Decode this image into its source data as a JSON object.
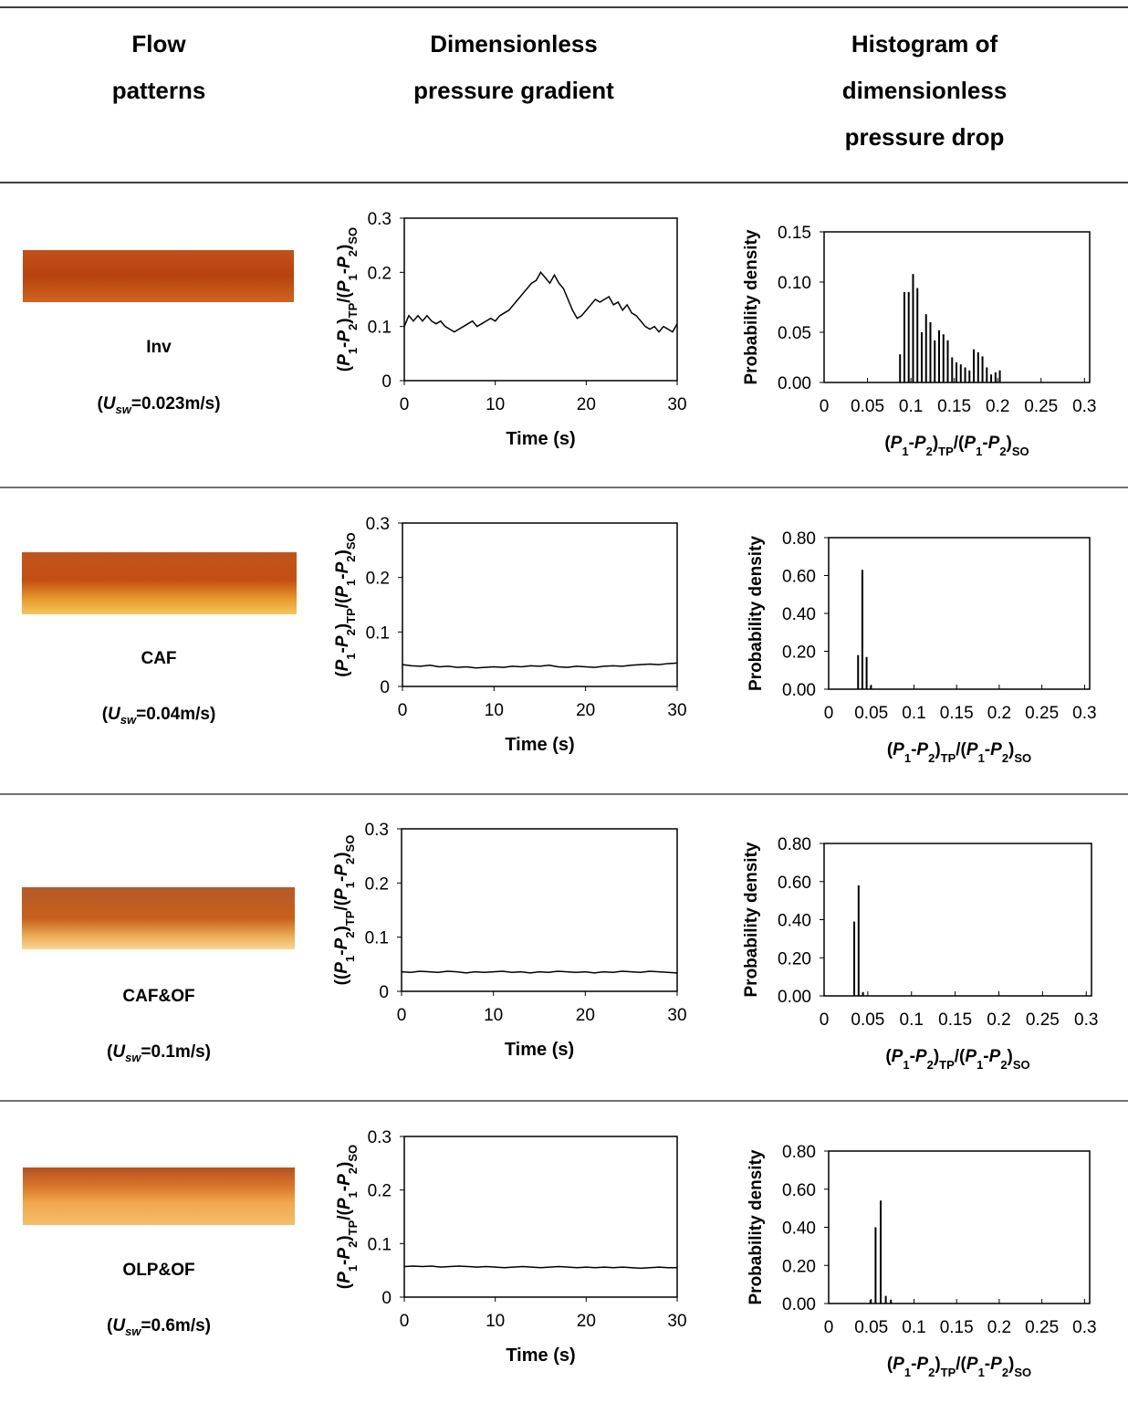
{
  "table": {
    "headers": [
      "Flow patterns",
      "Dimensionless pressure gradient",
      "Histogram of dimensionless pressure drop"
    ],
    "rows": [
      {
        "pattern": "Inv",
        "velocity": [
          "(",
          "U",
          "sw",
          "=0.023m/s)"
        ]
      },
      {
        "pattern": "CAF",
        "velocity": [
          "(",
          "U",
          "sw",
          "=0.04m/s)"
        ]
      },
      {
        "pattern": "CAF&OF",
        "velocity": [
          "(",
          "U",
          "sw",
          "=0.1m/s)"
        ]
      },
      {
        "pattern": "OLP&OF",
        "velocity": [
          "(",
          "U",
          "sw",
          "=0.6m/s)"
        ]
      }
    ]
  },
  "chart_data": [
    {
      "type": "line",
      "x_label": "Time (s)",
      "y_label": [
        "(",
        "P",
        "1",
        "-",
        "P",
        "2",
        ")",
        "TP",
        "/(",
        "P",
        "1",
        "-",
        "P",
        "2",
        ")",
        "SO"
      ],
      "color": "#000000",
      "xlim": [
        0,
        30
      ],
      "ylim": [
        0,
        0.3
      ],
      "xticks": [
        0,
        10,
        20,
        30
      ],
      "yticks": [
        0,
        0.1,
        0.2,
        0.3
      ],
      "x": [
        0,
        0.5,
        1,
        1.5,
        2,
        2.5,
        3,
        3.5,
        4,
        4.5,
        5,
        5.5,
        6,
        6.5,
        7,
        7.5,
        8,
        8.5,
        9,
        9.5,
        10,
        10.5,
        11,
        11.5,
        12,
        12.5,
        13,
        13.5,
        14,
        14.5,
        15,
        15.5,
        16,
        16.5,
        17,
        17.5,
        18,
        18.5,
        19,
        19.5,
        20,
        20.5,
        21,
        21.5,
        22,
        22.5,
        23,
        23.5,
        24,
        24.5,
        25,
        25.5,
        26,
        26.5,
        27,
        27.5,
        28,
        28.5,
        29,
        29.5,
        30
      ],
      "values": [
        0.1,
        0.12,
        0.11,
        0.12,
        0.11,
        0.12,
        0.11,
        0.105,
        0.11,
        0.1,
        0.095,
        0.09,
        0.095,
        0.1,
        0.105,
        0.11,
        0.1,
        0.105,
        0.11,
        0.115,
        0.11,
        0.12,
        0.125,
        0.13,
        0.14,
        0.15,
        0.16,
        0.17,
        0.18,
        0.185,
        0.2,
        0.19,
        0.18,
        0.195,
        0.18,
        0.17,
        0.15,
        0.13,
        0.115,
        0.12,
        0.13,
        0.14,
        0.15,
        0.145,
        0.15,
        0.155,
        0.14,
        0.145,
        0.13,
        0.14,
        0.125,
        0.12,
        0.11,
        0.1,
        0.095,
        0.1,
        0.09,
        0.1,
        0.095,
        0.09,
        0.105
      ]
    },
    {
      "type": "histogram",
      "x_label": [
        "(",
        "P",
        "1",
        "-",
        "P",
        "2",
        ")",
        "TP",
        "/(",
        "P",
        "1",
        "-",
        "P",
        "2",
        ")",
        "SO"
      ],
      "y_label": "Probability density",
      "color": "#000000",
      "xlim": [
        0,
        0.306
      ],
      "ylim": [
        0,
        0.15
      ],
      "xticks": [
        0,
        0.05,
        0.1,
        0.15,
        0.2,
        0.25,
        0.3
      ],
      "yticks": [
        {
          "value": 0,
          "label": "0.00"
        },
        {
          "value": 0.05,
          "label": "0.05"
        },
        {
          "value": 0.1,
          "label": "0.10"
        },
        {
          "value": 0.15,
          "label": "0.15"
        }
      ],
      "bins": [
        0.085,
        0.09,
        0.095,
        0.1,
        0.105,
        0.11,
        0.115,
        0.12,
        0.125,
        0.13,
        0.135,
        0.14,
        0.145,
        0.15,
        0.155,
        0.16,
        0.165,
        0.17,
        0.175,
        0.18,
        0.185,
        0.19,
        0.195,
        0.2,
        0.205
      ],
      "values": [
        0.028,
        0.09,
        0.09,
        0.108,
        0.094,
        0.05,
        0.068,
        0.06,
        0.042,
        0.052,
        0.048,
        0.042,
        0.025,
        0.02,
        0.018,
        0.015,
        0.012,
        0.033,
        0.03,
        0.026,
        0.015,
        0.008,
        0.01,
        0.012
      ]
    },
    {
      "type": "line",
      "x_label": "Time (s)",
      "y_label": [
        "(",
        "P",
        "1",
        "-",
        "P",
        "2",
        ")",
        "TP",
        "/(",
        "P",
        "1",
        "-",
        "P",
        "2",
        ")",
        "SO"
      ],
      "color": "#000000",
      "xlim": [
        0,
        30
      ],
      "ylim": [
        0,
        0.3
      ],
      "xticks": [
        0,
        10,
        20,
        30
      ],
      "yticks": [
        0,
        0.1,
        0.2,
        0.3
      ],
      "x": [
        0,
        1,
        2,
        3,
        4,
        5,
        6,
        7,
        8,
        9,
        10,
        11,
        12,
        13,
        14,
        15,
        16,
        17,
        18,
        19,
        20,
        21,
        22,
        23,
        24,
        25,
        26,
        27,
        28,
        29,
        30
      ],
      "values": [
        0.04,
        0.038,
        0.037,
        0.039,
        0.036,
        0.037,
        0.035,
        0.036,
        0.034,
        0.035,
        0.036,
        0.035,
        0.037,
        0.036,
        0.038,
        0.037,
        0.039,
        0.036,
        0.035,
        0.037,
        0.036,
        0.035,
        0.037,
        0.038,
        0.037,
        0.039,
        0.04,
        0.041,
        0.04,
        0.042,
        0.043
      ]
    },
    {
      "type": "histogram",
      "x_label": [
        "(",
        "P",
        "1",
        "-",
        "P",
        "2",
        ")",
        "TP",
        "/(",
        "P",
        "1",
        "-",
        "P",
        "2",
        ")",
        "SO"
      ],
      "y_label": "Probability density",
      "color": "#000000",
      "xlim": [
        0,
        0.306
      ],
      "ylim": [
        0,
        0.8
      ],
      "xticks": [
        0,
        0.05,
        0.1,
        0.15,
        0.2,
        0.25,
        0.3
      ],
      "yticks": [
        {
          "value": 0,
          "label": "0.00"
        },
        {
          "value": 0.2,
          "label": "0.20"
        },
        {
          "value": 0.4,
          "label": "0.40"
        },
        {
          "value": 0.6,
          "label": "0.60"
        },
        {
          "value": 0.8,
          "label": "0.80"
        }
      ],
      "bins": [
        0.032,
        0.037,
        0.042,
        0.047,
        0.052
      ],
      "values": [
        0.18,
        0.63,
        0.17,
        0.02
      ]
    },
    {
      "type": "line",
      "x_label": "Time (s)",
      "y_label": [
        "((",
        "P",
        "1",
        "-",
        "P",
        "2",
        ")",
        "TP",
        "/(",
        "P",
        "1",
        "-",
        "P",
        "2",
        ")",
        "SO"
      ],
      "color": "#000000",
      "xlim": [
        0,
        30
      ],
      "ylim": [
        0,
        0.3
      ],
      "xticks": [
        0,
        10,
        20,
        30
      ],
      "yticks": [
        0,
        0.1,
        0.2,
        0.3
      ],
      "x": [
        0,
        1,
        2,
        3,
        4,
        5,
        6,
        7,
        8,
        9,
        10,
        11,
        12,
        13,
        14,
        15,
        16,
        17,
        18,
        19,
        20,
        21,
        22,
        23,
        24,
        25,
        26,
        27,
        28,
        29,
        30
      ],
      "values": [
        0.036,
        0.035,
        0.037,
        0.036,
        0.035,
        0.037,
        0.036,
        0.034,
        0.036,
        0.035,
        0.036,
        0.037,
        0.035,
        0.036,
        0.034,
        0.036,
        0.035,
        0.037,
        0.036,
        0.035,
        0.036,
        0.034,
        0.036,
        0.035,
        0.037,
        0.036,
        0.035,
        0.037,
        0.036,
        0.035,
        0.034
      ]
    },
    {
      "type": "histogram",
      "x_label": [
        "(",
        "P",
        "1",
        "-",
        "P",
        "2",
        ")",
        "TP",
        "/(",
        "P",
        "1",
        "-",
        "P",
        "2",
        ")",
        "SO"
      ],
      "y_label": "Probability density",
      "color": "#000000",
      "xlim": [
        0,
        0.306
      ],
      "ylim": [
        0,
        0.8
      ],
      "xticks": [
        0,
        0.05,
        0.1,
        0.15,
        0.2,
        0.25,
        0.3
      ],
      "yticks": [
        {
          "value": 0,
          "label": "0.00"
        },
        {
          "value": 0.2,
          "label": "0.20"
        },
        {
          "value": 0.4,
          "label": "0.40"
        },
        {
          "value": 0.6,
          "label": "0.60"
        },
        {
          "value": 0.8,
          "label": "0.80"
        }
      ],
      "bins": [
        0.032,
        0.037,
        0.042,
        0.047
      ],
      "values": [
        0.39,
        0.58,
        0.02
      ]
    },
    {
      "type": "line",
      "x_label": "Time (s)",
      "y_label": [
        "(",
        "P",
        "1",
        "-",
        "P",
        "2",
        ")",
        "TP",
        "/(",
        "P",
        "1",
        "-",
        "P",
        "2",
        ")",
        "SO"
      ],
      "color": "#000000",
      "xlim": [
        0,
        30
      ],
      "ylim": [
        0,
        0.3
      ],
      "xticks": [
        0,
        10,
        20,
        30
      ],
      "yticks": [
        0,
        0.1,
        0.2,
        0.3
      ],
      "x": [
        0,
        1,
        2,
        3,
        4,
        5,
        6,
        7,
        8,
        9,
        10,
        11,
        12,
        13,
        14,
        15,
        16,
        17,
        18,
        19,
        20,
        21,
        22,
        23,
        24,
        25,
        26,
        27,
        28,
        29,
        30
      ],
      "values": [
        0.057,
        0.058,
        0.057,
        0.058,
        0.056,
        0.057,
        0.058,
        0.057,
        0.056,
        0.057,
        0.056,
        0.055,
        0.056,
        0.057,
        0.056,
        0.055,
        0.056,
        0.057,
        0.056,
        0.055,
        0.056,
        0.055,
        0.056,
        0.055,
        0.056,
        0.055,
        0.054,
        0.055,
        0.056,
        0.055,
        0.055
      ]
    },
    {
      "type": "histogram",
      "x_label": [
        "(",
        "P",
        "1",
        "-",
        "P",
        "2",
        ")",
        "TP",
        "/(",
        "P",
        "1",
        "-",
        "P",
        "2",
        ")",
        "SO"
      ],
      "y_label": "Probability density",
      "color": "#000000",
      "xlim": [
        0,
        0.306
      ],
      "ylim": [
        0,
        0.8
      ],
      "xticks": [
        0,
        0.05,
        0.1,
        0.15,
        0.2,
        0.25,
        0.3
      ],
      "yticks": [
        {
          "value": 0,
          "label": "0.00"
        },
        {
          "value": 0.2,
          "label": "0.20"
        },
        {
          "value": 0.4,
          "label": "0.40"
        },
        {
          "value": 0.6,
          "label": "0.60"
        },
        {
          "value": 0.8,
          "label": "0.80"
        }
      ],
      "bins": [
        0.046,
        0.052,
        0.058,
        0.064,
        0.07,
        0.076
      ],
      "values": [
        0.02,
        0.4,
        0.54,
        0.04,
        0.02
      ]
    }
  ]
}
